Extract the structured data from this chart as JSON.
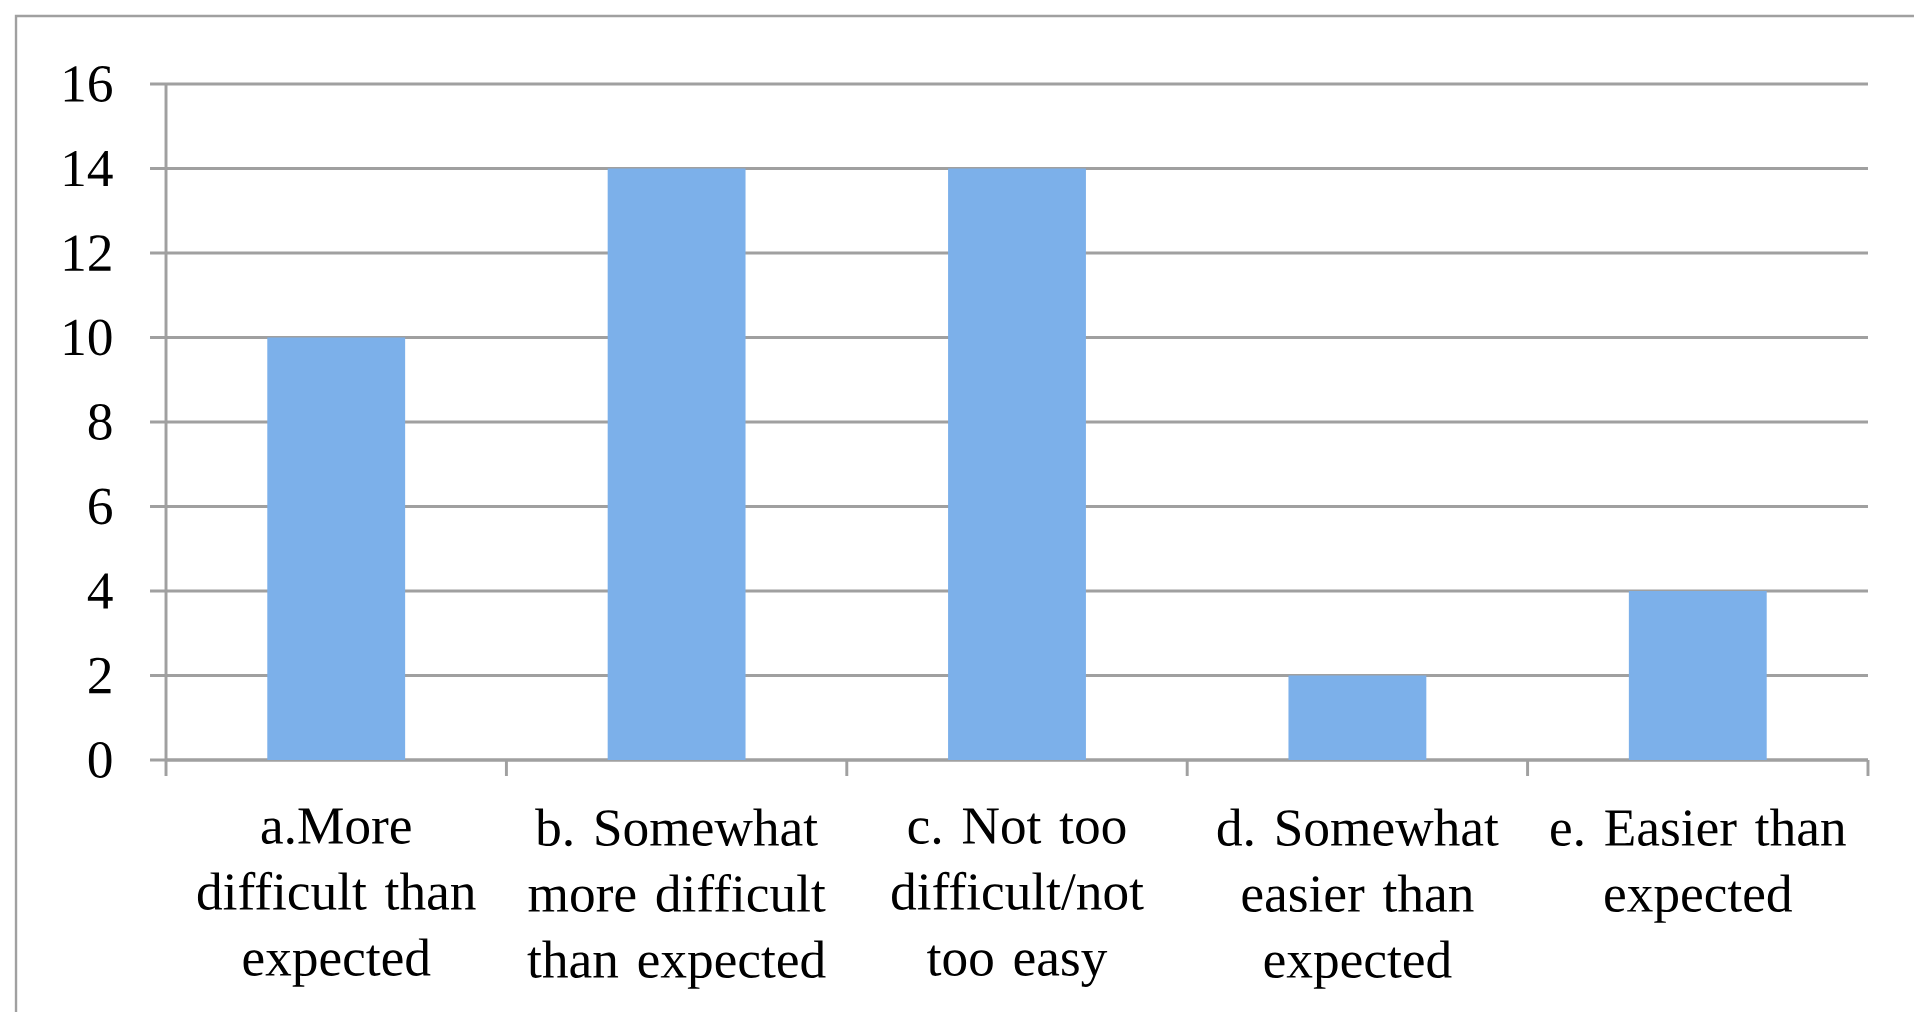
{
  "chart_data": {
    "type": "bar",
    "categories": [
      "a.More difficult than expected",
      "b. Somewhat more difficult than expected",
      "c. Not too difficult/not too easy",
      "d. Somewhat easier than expected",
      "e. Easier than expected"
    ],
    "values": [
      10,
      14,
      14,
      2,
      4
    ],
    "color": "#7cb0ea",
    "ylim": [
      0,
      16
    ],
    "yticks": [
      0,
      2,
      4,
      6,
      8,
      10,
      12,
      14,
      16
    ],
    "grid": "y"
  }
}
